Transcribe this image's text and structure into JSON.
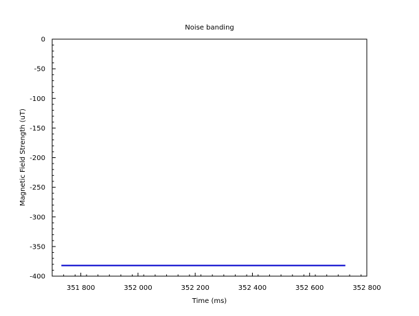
{
  "chart_data": {
    "type": "line",
    "title": "Noise banding",
    "xlabel": "Time (ms)",
    "ylabel": "Magnetic Field Strength (uT)",
    "xlim": [
      351700,
      352800
    ],
    "ylim": [
      -400,
      0
    ],
    "x_ticks": [
      351800,
      352000,
      352200,
      352400,
      352600,
      352800
    ],
    "x_tick_labels": [
      "351 800",
      "352 000",
      "352 200",
      "352 400",
      "352 600",
      "352 800"
    ],
    "y_ticks": [
      0,
      -50,
      -100,
      -150,
      -200,
      -250,
      -300,
      -350,
      -400
    ],
    "y_tick_labels": [
      "0",
      "-50",
      "-100",
      "-150",
      "-200",
      "-250",
      "-300",
      "-350",
      "-400"
    ],
    "series": [
      {
        "color": "#0000cc",
        "x": [
          351732,
          352725
        ],
        "y": [
          -382,
          -382
        ]
      }
    ],
    "grid": false,
    "legend": "none"
  }
}
